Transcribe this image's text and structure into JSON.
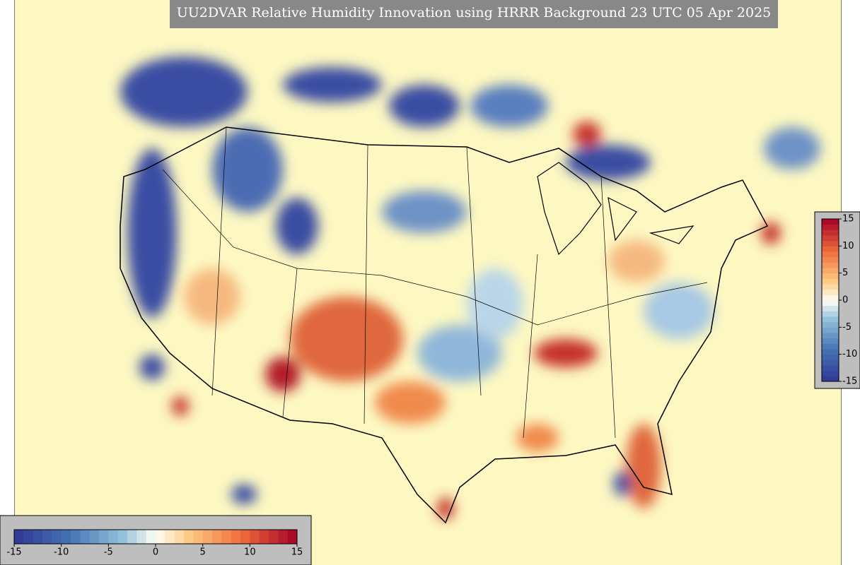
{
  "title": "UU2DVAR Relative Humidity Innovation using HRRR Background 23 UTC 05 Apr 2025",
  "colorbar_horizontal": {
    "limits": [
      -15,
      15
    ],
    "ticks": [
      -15,
      -10,
      -5,
      0,
      5,
      10,
      15
    ]
  },
  "colorbar_vertical": {
    "limits": [
      -15,
      15
    ],
    "ticks": [
      15,
      10,
      5,
      0,
      -5,
      -10,
      -15
    ]
  }
}
